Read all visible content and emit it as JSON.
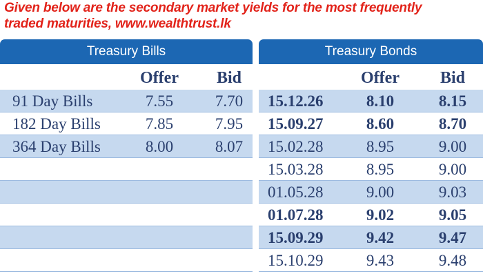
{
  "intro": {
    "line1": "Given below are the secondary market yields for the most frequently",
    "line2": "traded maturities, www.wealthtrust.lk"
  },
  "headers": {
    "bills": "Treasury Bills",
    "bonds": "Treasury Bonds",
    "offer": "Offer",
    "bid": "Bid"
  },
  "bills": [
    {
      "label": "91 Day Bills",
      "offer": "7.55",
      "bid": "7.70"
    },
    {
      "label": "182 Day Bills",
      "offer": "7.85",
      "bid": "7.95"
    },
    {
      "label": "364 Day Bills",
      "offer": "8.00",
      "bid": "8.07"
    }
  ],
  "bonds": [
    {
      "maturity": "15.12.26",
      "offer": "8.10",
      "bid": "8.15",
      "bold": true
    },
    {
      "maturity": "15.09.27",
      "offer": "8.60",
      "bid": "8.70",
      "bold": true
    },
    {
      "maturity": "15.02.28",
      "offer": "8.95",
      "bid": "9.00",
      "bold": false
    },
    {
      "maturity": "15.03.28",
      "offer": "8.95",
      "bid": "9.00",
      "bold": false
    },
    {
      "maturity": "01.05.28",
      "offer": "9.00",
      "bid": "9.03",
      "bold": false
    },
    {
      "maturity": "01.07.28",
      "offer": "9.02",
      "bid": "9.05",
      "bold": true
    },
    {
      "maturity": "15.09.29",
      "offer": "9.42",
      "bid": "9.47",
      "bold": true
    },
    {
      "maturity": "15.10.29",
      "offer": "9.43",
      "bid": "9.48",
      "bold": false
    }
  ],
  "colors": {
    "intro_red": "#e2231a",
    "header_blue": "#1c67b3",
    "band_light": "#c6d9ef",
    "text_navy": "#2a3f6e"
  }
}
